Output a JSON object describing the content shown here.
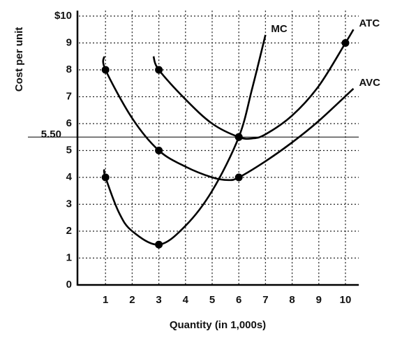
{
  "chart_data": {
    "type": "line",
    "y_label": "Cost per unit",
    "x_label": "Quantity (in 1,000s)",
    "xlim": [
      0,
      10.5
    ],
    "ylim": [
      0,
      10.2
    ],
    "xticks": [
      1,
      2,
      3,
      4,
      5,
      6,
      7,
      8,
      9,
      10
    ],
    "yticks": [
      0,
      1,
      2,
      3,
      4,
      5,
      6,
      7,
      8,
      9,
      {
        "value": 10,
        "label": "$10"
      }
    ],
    "grid": true,
    "reference_line": {
      "value": 5.5,
      "label": "5.50"
    },
    "series": [
      {
        "name": "MC",
        "color": "#000000",
        "x": [
          0.95,
          1,
          1.5,
          2,
          3,
          4,
          5,
          6,
          6.5,
          7
        ],
        "values": [
          4.3,
          4,
          2.7,
          2,
          1.5,
          2.2,
          3.5,
          5.5,
          7.3,
          9.3
        ],
        "points_x": [
          1,
          3,
          6
        ],
        "points_y": [
          4,
          1.5,
          5.5
        ]
      },
      {
        "name": "ATC",
        "color": "#000000",
        "x": [
          2.8,
          3,
          4,
          5,
          6,
          6.5,
          7,
          8,
          9,
          10,
          10.3
        ],
        "values": [
          8.5,
          8,
          6.9,
          6,
          5.5,
          5.45,
          5.6,
          6.3,
          7.4,
          9,
          9.5
        ],
        "points_x": [
          3,
          6,
          10
        ],
        "points_y": [
          8,
          5.5,
          9
        ]
      },
      {
        "name": "AVC",
        "color": "#000000",
        "x": [
          0.95,
          1,
          2,
          3,
          4,
          5,
          5.6,
          6,
          7,
          8,
          9,
          10.3
        ],
        "values": [
          8.5,
          8,
          6.2,
          5,
          4.4,
          4.0,
          3.9,
          4,
          4.6,
          5.3,
          6.1,
          7.3
        ],
        "points_x": [
          1,
          3,
          6
        ],
        "points_y": [
          8,
          5,
          4
        ]
      }
    ]
  }
}
